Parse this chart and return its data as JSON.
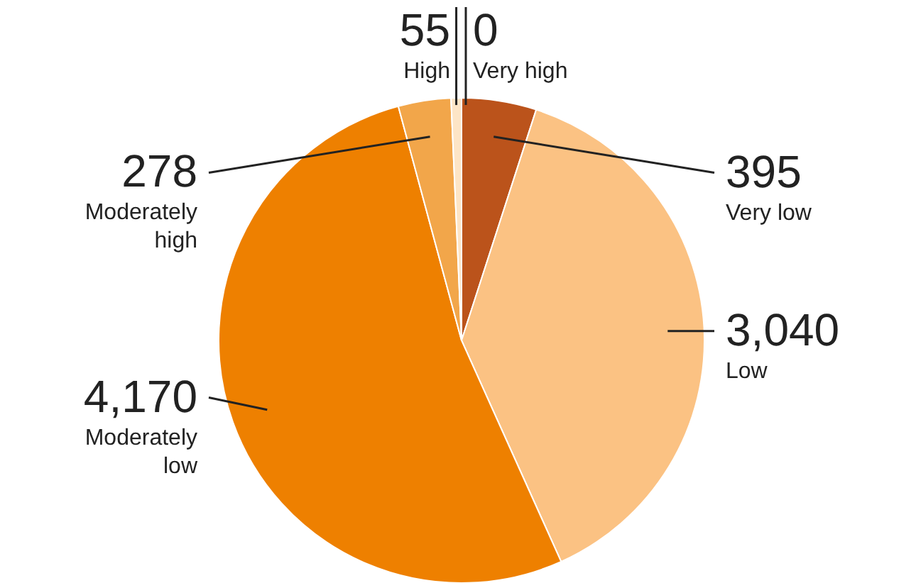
{
  "chart_data": {
    "type": "pie",
    "categories": [
      "Very high",
      "Very low",
      "Low",
      "Moderately low",
      "Moderately high",
      "High"
    ],
    "values": [
      0,
      395,
      3040,
      4170,
      278,
      55
    ],
    "colors": [
      "#9e3f10",
      "#bb531b",
      "#fbc283",
      "#ee8000",
      "#f2a64a",
      "#fde5c6"
    ],
    "value_labels": [
      "0",
      "395",
      "3,040",
      "4,170",
      "278",
      "55"
    ]
  }
}
